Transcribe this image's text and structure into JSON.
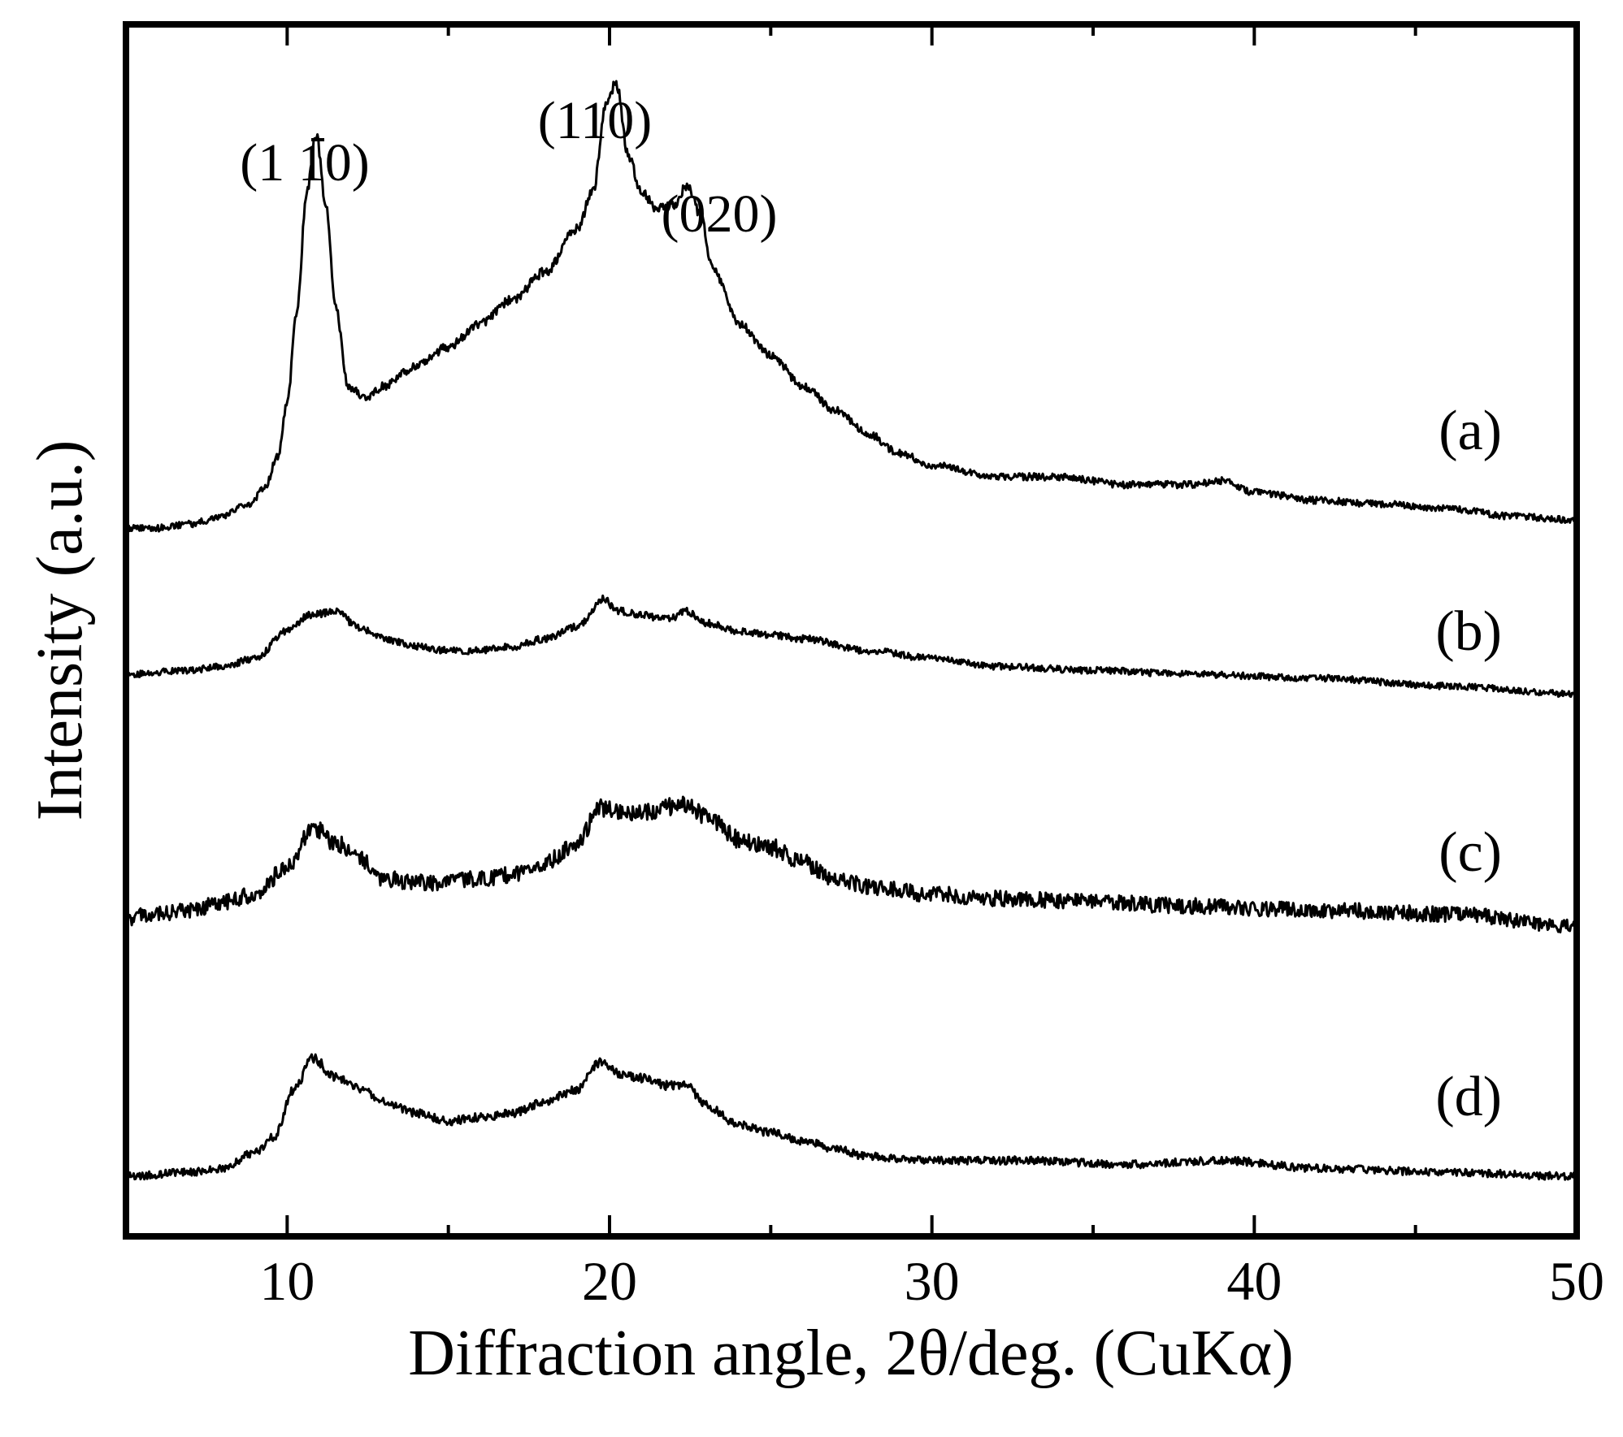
{
  "chart_data": {
    "type": "line",
    "title": "",
    "xlabel": "Diffraction angle, 2θ/deg. (CuKα)",
    "ylabel": "Intensity (a.u.)",
    "xlim": [
      5,
      50
    ],
    "xticks": [
      10,
      20,
      30,
      40,
      50
    ],
    "yticks": [],
    "grid": false,
    "legend": "none",
    "y_units": "arbitrary intensity, traces vertically offset",
    "series": [
      {
        "name": "(a)",
        "noise": 0.012,
        "points": [
          [
            5,
            0.0
          ],
          [
            6,
            0.0
          ],
          [
            7,
            0.01
          ],
          [
            8,
            0.03
          ],
          [
            8.8,
            0.06
          ],
          [
            9.3,
            0.1
          ],
          [
            9.7,
            0.18
          ],
          [
            10.0,
            0.32
          ],
          [
            10.3,
            0.55
          ],
          [
            10.6,
            0.85
          ],
          [
            10.9,
            1.0
          ],
          [
            11.2,
            0.82
          ],
          [
            11.5,
            0.56
          ],
          [
            11.9,
            0.36
          ],
          [
            12.4,
            0.33
          ],
          [
            13.0,
            0.36
          ],
          [
            14.0,
            0.41
          ],
          [
            15.0,
            0.46
          ],
          [
            16.0,
            0.52
          ],
          [
            17.0,
            0.58
          ],
          [
            18.0,
            0.65
          ],
          [
            19.0,
            0.76
          ],
          [
            19.5,
            0.86
          ],
          [
            19.9,
            1.08
          ],
          [
            20.2,
            1.13
          ],
          [
            20.6,
            0.94
          ],
          [
            21.0,
            0.85
          ],
          [
            21.5,
            0.81
          ],
          [
            22.0,
            0.82
          ],
          [
            22.4,
            0.87
          ],
          [
            22.8,
            0.8
          ],
          [
            23.2,
            0.66
          ],
          [
            24.0,
            0.52
          ],
          [
            25.0,
            0.44
          ],
          [
            26.0,
            0.36
          ],
          [
            27.0,
            0.3
          ],
          [
            28.0,
            0.24
          ],
          [
            29.0,
            0.19
          ],
          [
            30.0,
            0.16
          ],
          [
            32.0,
            0.13
          ],
          [
            34.0,
            0.13
          ],
          [
            36.0,
            0.11
          ],
          [
            38.0,
            0.11
          ],
          [
            39.0,
            0.12
          ],
          [
            40.0,
            0.09
          ],
          [
            42.0,
            0.07
          ],
          [
            44.0,
            0.06
          ],
          [
            46.0,
            0.05
          ],
          [
            48.0,
            0.03
          ],
          [
            50.0,
            0.02
          ]
        ]
      },
      {
        "name": "(b)",
        "noise": 0.012,
        "points": [
          [
            5,
            0.0
          ],
          [
            7,
            0.01
          ],
          [
            8,
            0.02
          ],
          [
            9,
            0.04
          ],
          [
            10,
            0.11
          ],
          [
            10.7,
            0.15
          ],
          [
            11.5,
            0.16
          ],
          [
            12.2,
            0.12
          ],
          [
            13,
            0.09
          ],
          [
            14,
            0.07
          ],
          [
            15,
            0.06
          ],
          [
            16,
            0.06
          ],
          [
            17,
            0.07
          ],
          [
            18,
            0.09
          ],
          [
            19,
            0.12
          ],
          [
            19.8,
            0.19
          ],
          [
            20.3,
            0.16
          ],
          [
            21,
            0.15
          ],
          [
            21.8,
            0.14
          ],
          [
            22.4,
            0.16
          ],
          [
            23,
            0.13
          ],
          [
            24,
            0.11
          ],
          [
            25,
            0.1
          ],
          [
            26,
            0.09
          ],
          [
            28,
            0.06
          ],
          [
            30,
            0.04
          ],
          [
            32,
            0.02
          ],
          [
            35,
            0.01
          ],
          [
            38,
            0.0
          ],
          [
            42,
            -0.01
          ],
          [
            46,
            -0.03
          ],
          [
            50,
            -0.05
          ]
        ]
      },
      {
        "name": "(c)",
        "noise": 0.028,
        "points": [
          [
            5,
            0.0
          ],
          [
            6,
            0.01
          ],
          [
            7,
            0.02
          ],
          [
            8,
            0.04
          ],
          [
            9,
            0.06
          ],
          [
            10,
            0.13
          ],
          [
            10.8,
            0.23
          ],
          [
            11.5,
            0.19
          ],
          [
            12.3,
            0.15
          ],
          [
            13,
            0.1
          ],
          [
            14,
            0.09
          ],
          [
            15,
            0.09
          ],
          [
            16,
            0.1
          ],
          [
            17,
            0.11
          ],
          [
            18,
            0.14
          ],
          [
            19,
            0.19
          ],
          [
            19.7,
            0.28
          ],
          [
            20.3,
            0.27
          ],
          [
            21,
            0.27
          ],
          [
            21.8,
            0.28
          ],
          [
            22.3,
            0.29
          ],
          [
            23,
            0.26
          ],
          [
            24,
            0.2
          ],
          [
            25,
            0.18
          ],
          [
            26,
            0.14
          ],
          [
            27,
            0.1
          ],
          [
            28,
            0.08
          ],
          [
            30,
            0.06
          ],
          [
            32,
            0.05
          ],
          [
            35,
            0.04
          ],
          [
            38,
            0.03
          ],
          [
            42,
            0.02
          ],
          [
            46,
            0.01
          ],
          [
            50,
            -0.02
          ]
        ]
      },
      {
        "name": "(d)",
        "noise": 0.014,
        "points": [
          [
            5,
            0.0
          ],
          [
            7,
            0.01
          ],
          [
            8,
            0.02
          ],
          [
            9,
            0.06
          ],
          [
            9.6,
            0.1
          ],
          [
            10.2,
            0.22
          ],
          [
            10.8,
            0.3
          ],
          [
            11.5,
            0.25
          ],
          [
            12.3,
            0.22
          ],
          [
            13,
            0.19
          ],
          [
            14,
            0.16
          ],
          [
            15,
            0.14
          ],
          [
            16,
            0.15
          ],
          [
            17,
            0.16
          ],
          [
            18,
            0.19
          ],
          [
            19,
            0.22
          ],
          [
            19.7,
            0.29
          ],
          [
            20.3,
            0.26
          ],
          [
            21,
            0.25
          ],
          [
            21.8,
            0.23
          ],
          [
            22.4,
            0.23
          ],
          [
            23,
            0.18
          ],
          [
            24,
            0.13
          ],
          [
            25,
            0.11
          ],
          [
            26,
            0.09
          ],
          [
            27,
            0.07
          ],
          [
            28,
            0.05
          ],
          [
            30,
            0.04
          ],
          [
            33,
            0.04
          ],
          [
            36,
            0.03
          ],
          [
            39,
            0.04
          ],
          [
            42,
            0.02
          ],
          [
            46,
            0.01
          ],
          [
            50,
            0.0
          ]
        ]
      }
    ],
    "peak_labels": [
      {
        "text": "(1 10)",
        "bar_over": "1",
        "x": 10.9,
        "series": "(a)"
      },
      {
        "text": "(110)",
        "x": 20.2,
        "series": "(a)"
      },
      {
        "text": "(020)",
        "x": 22.6,
        "series": "(a)"
      }
    ]
  }
}
